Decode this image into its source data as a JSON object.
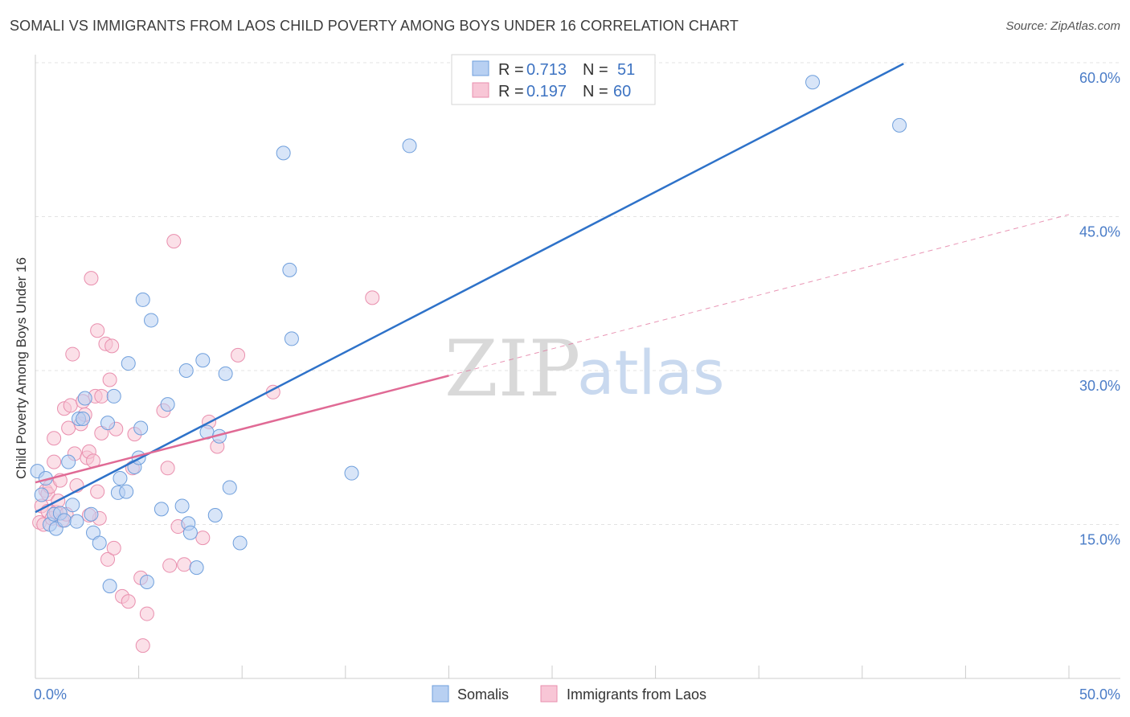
{
  "header": {
    "title": "SOMALI VS IMMIGRANTS FROM LAOS CHILD POVERTY AMONG BOYS UNDER 16 CORRELATION CHART",
    "source": "Source: ZipAtlas.com"
  },
  "watermark": {
    "zip": "ZIP",
    "atlas": "atlas"
  },
  "chart_data": {
    "type": "scatter",
    "title": "SOMALI VS IMMIGRANTS FROM LAOS CHILD POVERTY AMONG BOYS UNDER 16 CORRELATION CHART",
    "xlabel": "",
    "ylabel": "Child Poverty Among Boys Under 16",
    "xlim": [
      0,
      50
    ],
    "ylim": [
      0,
      60
    ],
    "x_tick_labels": [
      "0.0%",
      "50.0%"
    ],
    "y_ticks": [
      15,
      30,
      45,
      60
    ],
    "y_tick_labels": [
      "15.0%",
      "30.0%",
      "45.0%",
      "60.0%"
    ],
    "grid": true,
    "legend_placement": "top-center",
    "colors": {
      "somalis_fill": "#b8d0f2",
      "somalis_stroke": "#6f9fdc",
      "somalis_line": "#2e72c9",
      "laos_fill": "#f8c6d6",
      "laos_stroke": "#e98fae",
      "laos_line": "#e06a95"
    },
    "legend": [
      {
        "r_label": "R =",
        "r_value": "0.713",
        "n_label": "N =",
        "n_value": "51"
      },
      {
        "r_label": "R =",
        "r_value": "0.197",
        "n_label": "N =",
        "n_value": "60"
      }
    ],
    "series": [
      {
        "name": "Somalis",
        "trend": {
          "x": [
            0,
            42
          ],
          "y": [
            16.2,
            59.9
          ]
        },
        "points": [
          [
            0.1,
            20.2
          ],
          [
            0.3,
            17.9
          ],
          [
            0.5,
            19.5
          ],
          [
            0.7,
            15.0
          ],
          [
            0.9,
            16.0
          ],
          [
            1.0,
            14.6
          ],
          [
            1.2,
            16.1
          ],
          [
            1.4,
            15.4
          ],
          [
            1.6,
            21.1
          ],
          [
            1.8,
            16.9
          ],
          [
            2.0,
            15.3
          ],
          [
            2.1,
            25.3
          ],
          [
            2.3,
            25.3
          ],
          [
            2.4,
            27.3
          ],
          [
            2.7,
            16.0
          ],
          [
            2.8,
            14.2
          ],
          [
            3.1,
            13.2
          ],
          [
            3.5,
            24.9
          ],
          [
            3.6,
            9.0
          ],
          [
            3.8,
            27.5
          ],
          [
            4.0,
            18.1
          ],
          [
            4.1,
            19.5
          ],
          [
            4.4,
            18.2
          ],
          [
            4.5,
            30.7
          ],
          [
            4.8,
            20.6
          ],
          [
            5.0,
            21.5
          ],
          [
            5.1,
            24.4
          ],
          [
            5.2,
            36.9
          ],
          [
            5.4,
            9.4
          ],
          [
            5.6,
            34.9
          ],
          [
            6.1,
            16.5
          ],
          [
            6.4,
            26.7
          ],
          [
            7.1,
            16.8
          ],
          [
            7.3,
            30.0
          ],
          [
            7.4,
            15.1
          ],
          [
            7.5,
            14.2
          ],
          [
            7.8,
            10.8
          ],
          [
            8.1,
            31.0
          ],
          [
            8.3,
            24.0
          ],
          [
            8.7,
            15.9
          ],
          [
            8.9,
            23.6
          ],
          [
            9.2,
            29.7
          ],
          [
            9.4,
            18.6
          ],
          [
            9.9,
            13.2
          ],
          [
            12.0,
            51.2
          ],
          [
            12.3,
            39.8
          ],
          [
            12.4,
            33.1
          ],
          [
            15.3,
            20.0
          ],
          [
            18.1,
            51.9
          ],
          [
            37.6,
            58.1
          ],
          [
            41.8,
            53.9
          ]
        ]
      },
      {
        "name": "Immigrants from Laos",
        "trend": {
          "x": [
            0,
            20
          ],
          "y": [
            19.1,
            29.5
          ]
        },
        "dashed_extension": {
          "x": [
            20,
            50
          ],
          "y": [
            29.5,
            45.2
          ]
        },
        "points": [
          [
            0.2,
            15.2
          ],
          [
            0.3,
            16.8
          ],
          [
            0.4,
            15.0
          ],
          [
            0.5,
            18.3
          ],
          [
            0.6,
            18.0
          ],
          [
            0.6,
            16.3
          ],
          [
            0.7,
            18.7
          ],
          [
            0.8,
            15.6
          ],
          [
            0.9,
            21.1
          ],
          [
            1.0,
            16.2
          ],
          [
            1.1,
            17.3
          ],
          [
            1.2,
            19.3
          ],
          [
            1.3,
            15.4
          ],
          [
            1.4,
            26.3
          ],
          [
            1.5,
            16.0
          ],
          [
            1.6,
            24.4
          ],
          [
            1.7,
            26.6
          ],
          [
            1.8,
            31.6
          ],
          [
            1.9,
            21.9
          ],
          [
            2.0,
            18.8
          ],
          [
            2.2,
            24.8
          ],
          [
            2.3,
            27.0
          ],
          [
            2.4,
            25.7
          ],
          [
            2.5,
            21.5
          ],
          [
            2.6,
            22.1
          ],
          [
            2.7,
            39.0
          ],
          [
            2.8,
            21.2
          ],
          [
            2.9,
            27.5
          ],
          [
            3.0,
            33.9
          ],
          [
            3.0,
            18.2
          ],
          [
            3.1,
            15.6
          ],
          [
            3.2,
            27.5
          ],
          [
            3.2,
            23.9
          ],
          [
            3.4,
            32.6
          ],
          [
            3.5,
            11.6
          ],
          [
            3.6,
            29.1
          ],
          [
            3.7,
            32.4
          ],
          [
            3.8,
            12.7
          ],
          [
            3.9,
            24.3
          ],
          [
            4.2,
            8.0
          ],
          [
            4.5,
            7.5
          ],
          [
            4.7,
            20.5
          ],
          [
            4.8,
            23.8
          ],
          [
            5.1,
            9.8
          ],
          [
            5.2,
            3.2
          ],
          [
            5.4,
            6.3
          ],
          [
            6.2,
            26.1
          ],
          [
            6.4,
            20.5
          ],
          [
            6.5,
            11.0
          ],
          [
            6.7,
            42.6
          ],
          [
            6.9,
            14.8
          ],
          [
            7.2,
            11.1
          ],
          [
            8.1,
            13.7
          ],
          [
            8.4,
            25.0
          ],
          [
            8.8,
            22.6
          ],
          [
            9.8,
            31.5
          ],
          [
            11.5,
            27.9
          ],
          [
            16.3,
            37.1
          ],
          [
            0.9,
            23.4
          ],
          [
            2.6,
            15.9
          ]
        ]
      }
    ]
  }
}
